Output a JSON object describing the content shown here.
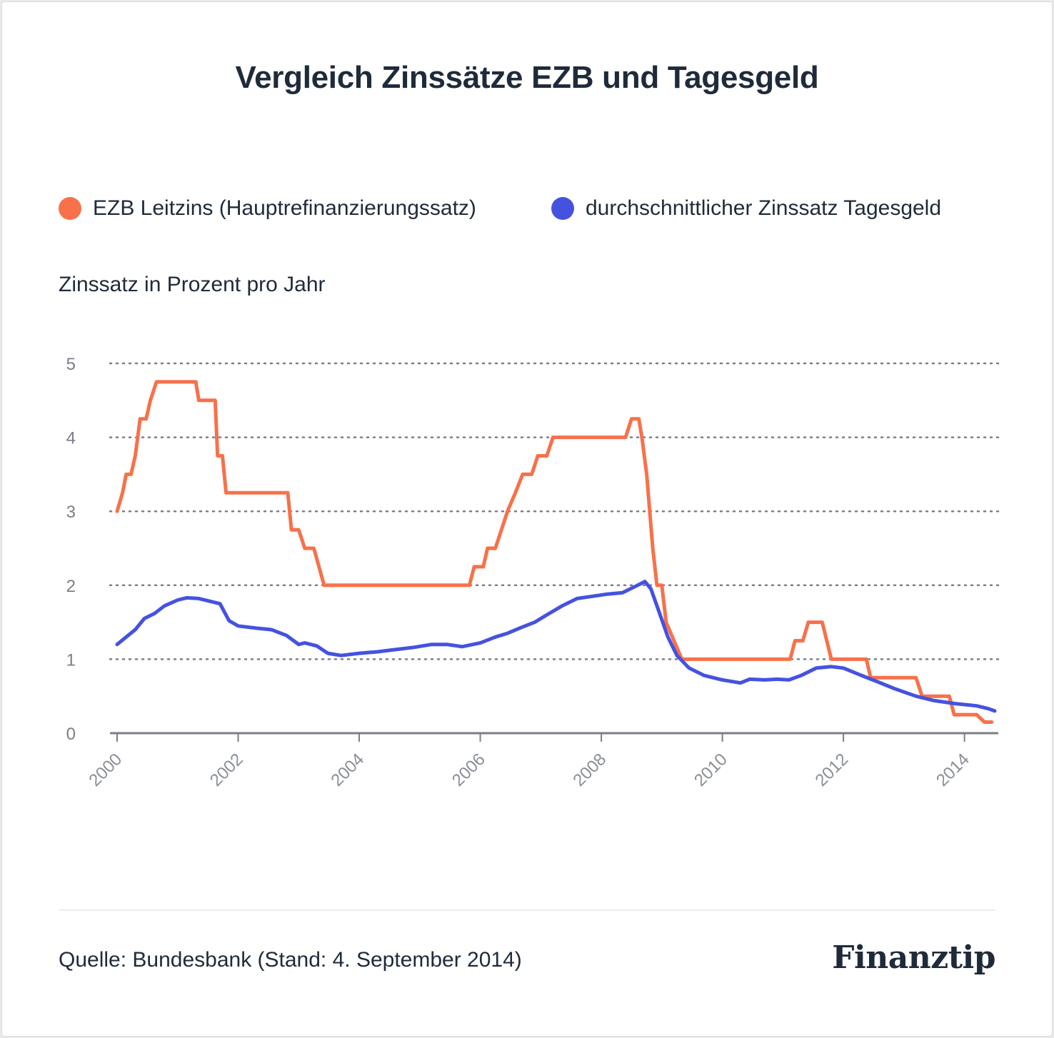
{
  "title": "Vergleich Zinssätze EZB und Tagesgeld",
  "ylabel": "Zinssatz in Prozent pro Jahr",
  "source": "Quelle: Bundesbank (Stand: 4. September 2014)",
  "logo": "Finanztip",
  "colors": {
    "ezb": "#f7714a",
    "tagesgeld": "#4552e0",
    "text": "#1f2b3a",
    "grid": "#7a7f86",
    "axis": "#7a7f86"
  },
  "chart_data": {
    "type": "line",
    "title": "Vergleich Zinssätze EZB und Tagesgeld",
    "ylabel": "Zinssatz in Prozent pro Jahr",
    "xlabel": "",
    "ylim": [
      0,
      5
    ],
    "xlim": [
      2000,
      2014.5
    ],
    "yticks": [
      "0",
      "1",
      "2",
      "3",
      "4",
      "5"
    ],
    "xticks": [
      "2000",
      "2002",
      "2004",
      "2006",
      "2008",
      "2010",
      "2012",
      "2014"
    ],
    "grid": "horizontal-dotted",
    "legend_position": "top",
    "series": [
      {
        "name": "EZB Leitzins (Hauptrefinanzierungssatz)",
        "color": "#f7714a",
        "points": [
          [
            2000.0,
            3.0
          ],
          [
            2000.09,
            3.25
          ],
          [
            2000.15,
            3.5
          ],
          [
            2000.23,
            3.5
          ],
          [
            2000.3,
            3.75
          ],
          [
            2000.38,
            4.25
          ],
          [
            2000.48,
            4.25
          ],
          [
            2000.55,
            4.5
          ],
          [
            2000.65,
            4.75
          ],
          [
            2000.85,
            4.75
          ],
          [
            2001.0,
            4.75
          ],
          [
            2001.3,
            4.75
          ],
          [
            2001.35,
            4.5
          ],
          [
            2001.62,
            4.5
          ],
          [
            2001.66,
            3.75
          ],
          [
            2001.74,
            3.75
          ],
          [
            2001.8,
            3.25
          ],
          [
            2002.0,
            3.25
          ],
          [
            2002.82,
            3.25
          ],
          [
            2002.88,
            2.75
          ],
          [
            2003.0,
            2.75
          ],
          [
            2003.1,
            2.5
          ],
          [
            2003.25,
            2.5
          ],
          [
            2003.42,
            2.0
          ],
          [
            2004.0,
            2.0
          ],
          [
            2005.0,
            2.0
          ],
          [
            2005.82,
            2.0
          ],
          [
            2005.9,
            2.25
          ],
          [
            2006.05,
            2.25
          ],
          [
            2006.12,
            2.5
          ],
          [
            2006.25,
            2.5
          ],
          [
            2006.35,
            2.75
          ],
          [
            2006.45,
            3.0
          ],
          [
            2006.58,
            3.25
          ],
          [
            2006.7,
            3.5
          ],
          [
            2006.85,
            3.5
          ],
          [
            2006.95,
            3.75
          ],
          [
            2007.1,
            3.75
          ],
          [
            2007.2,
            4.0
          ],
          [
            2008.0,
            4.0
          ],
          [
            2008.4,
            4.0
          ],
          [
            2008.5,
            4.25
          ],
          [
            2008.62,
            4.25
          ],
          [
            2008.67,
            4.0
          ],
          [
            2008.75,
            3.5
          ],
          [
            2008.85,
            2.5
          ],
          [
            2008.92,
            2.0
          ],
          [
            2009.0,
            2.0
          ],
          [
            2009.07,
            1.5
          ],
          [
            2009.2,
            1.25
          ],
          [
            2009.33,
            1.0
          ],
          [
            2010.0,
            1.0
          ],
          [
            2011.0,
            1.0
          ],
          [
            2011.12,
            1.0
          ],
          [
            2011.2,
            1.25
          ],
          [
            2011.33,
            1.25
          ],
          [
            2011.42,
            1.5
          ],
          [
            2011.65,
            1.5
          ],
          [
            2011.8,
            1.0
          ],
          [
            2012.0,
            1.0
          ],
          [
            2012.38,
            1.0
          ],
          [
            2012.45,
            0.75
          ],
          [
            2013.2,
            0.75
          ],
          [
            2013.3,
            0.5
          ],
          [
            2013.75,
            0.5
          ],
          [
            2013.83,
            0.25
          ],
          [
            2014.2,
            0.25
          ],
          [
            2014.33,
            0.15
          ],
          [
            2014.45,
            0.15
          ]
        ]
      },
      {
        "name": "durchschnittlicher Zinssatz Tagesgeld",
        "color": "#4552e0",
        "points": [
          [
            2000.0,
            1.2
          ],
          [
            2000.15,
            1.3
          ],
          [
            2000.3,
            1.4
          ],
          [
            2000.45,
            1.55
          ],
          [
            2000.62,
            1.62
          ],
          [
            2000.78,
            1.72
          ],
          [
            2001.0,
            1.8
          ],
          [
            2001.15,
            1.83
          ],
          [
            2001.35,
            1.82
          ],
          [
            2001.55,
            1.78
          ],
          [
            2001.7,
            1.75
          ],
          [
            2001.85,
            1.52
          ],
          [
            2002.0,
            1.45
          ],
          [
            2002.3,
            1.42
          ],
          [
            2002.55,
            1.4
          ],
          [
            2002.8,
            1.32
          ],
          [
            2003.0,
            1.2
          ],
          [
            2003.1,
            1.22
          ],
          [
            2003.3,
            1.18
          ],
          [
            2003.48,
            1.08
          ],
          [
            2003.7,
            1.05
          ],
          [
            2004.0,
            1.08
          ],
          [
            2004.3,
            1.1
          ],
          [
            2004.6,
            1.13
          ],
          [
            2004.9,
            1.16
          ],
          [
            2005.2,
            1.2
          ],
          [
            2005.45,
            1.2
          ],
          [
            2005.7,
            1.17
          ],
          [
            2006.0,
            1.22
          ],
          [
            2006.25,
            1.3
          ],
          [
            2006.45,
            1.35
          ],
          [
            2006.65,
            1.42
          ],
          [
            2006.9,
            1.5
          ],
          [
            2007.1,
            1.6
          ],
          [
            2007.35,
            1.72
          ],
          [
            2007.6,
            1.82
          ],
          [
            2007.85,
            1.85
          ],
          [
            2008.1,
            1.88
          ],
          [
            2008.35,
            1.9
          ],
          [
            2008.55,
            1.98
          ],
          [
            2008.72,
            2.05
          ],
          [
            2008.82,
            1.95
          ],
          [
            2008.95,
            1.65
          ],
          [
            2009.1,
            1.3
          ],
          [
            2009.25,
            1.05
          ],
          [
            2009.45,
            0.88
          ],
          [
            2009.7,
            0.78
          ],
          [
            2010.0,
            0.72
          ],
          [
            2010.3,
            0.68
          ],
          [
            2010.45,
            0.73
          ],
          [
            2010.7,
            0.72
          ],
          [
            2010.9,
            0.73
          ],
          [
            2011.1,
            0.72
          ],
          [
            2011.3,
            0.78
          ],
          [
            2011.55,
            0.88
          ],
          [
            2011.8,
            0.9
          ],
          [
            2012.0,
            0.88
          ],
          [
            2012.3,
            0.78
          ],
          [
            2012.55,
            0.7
          ],
          [
            2012.85,
            0.6
          ],
          [
            2013.2,
            0.5
          ],
          [
            2013.5,
            0.44
          ],
          [
            2013.85,
            0.4
          ],
          [
            2014.2,
            0.37
          ],
          [
            2014.4,
            0.33
          ],
          [
            2014.5,
            0.3
          ]
        ]
      }
    ]
  }
}
